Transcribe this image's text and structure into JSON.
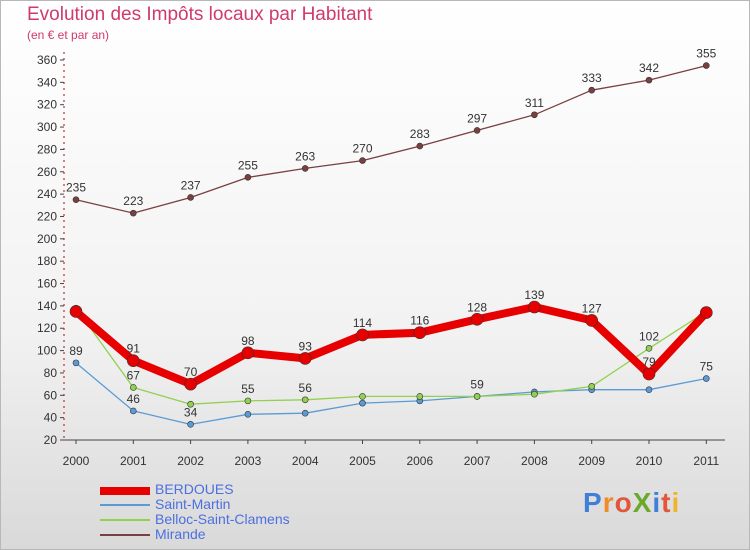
{
  "title": "Evolution des Impôts locaux par Habitant",
  "subtitle": "(en € et par an)",
  "logo": "ProXiti",
  "colors": {
    "background_top": "#ffffff",
    "background_bottom": "#d9d9d9",
    "title": "#d03a6a",
    "legend_text": "#4d6fe0"
  },
  "chart_data": {
    "type": "line",
    "x": [
      "2000",
      "2001",
      "2002",
      "2003",
      "2004",
      "2005",
      "2006",
      "2007",
      "2008",
      "2009",
      "2010",
      "2011"
    ],
    "ylim": [
      20,
      360
    ],
    "yticks": [
      20,
      40,
      60,
      80,
      100,
      120,
      140,
      160,
      180,
      200,
      220,
      240,
      260,
      280,
      300,
      320,
      340,
      360
    ],
    "grid": false,
    "legend_position": "bottom-left",
    "series": [
      {
        "name": "Mirande",
        "color": "#7b3f3f",
        "values": [
          235,
          223,
          237,
          255,
          263,
          270,
          283,
          297,
          311,
          333,
          342,
          355
        ],
        "labels": [
          "235",
          "223",
          "237",
          "255",
          "263",
          "270",
          "283",
          "297",
          "311",
          "333",
          "342",
          "355"
        ]
      },
      {
        "name": "Saint-Martin",
        "color": "#5b9bd5",
        "values": [
          89,
          46,
          34,
          43,
          44,
          53,
          55,
          59,
          63,
          65,
          65,
          75
        ],
        "labels": [
          "89",
          "46",
          "34",
          "",
          "",
          "",
          "",
          "",
          "",
          "",
          "",
          "75"
        ]
      },
      {
        "name": "Belloc-Saint-Clamens",
        "color": "#92d050",
        "values": [
          138,
          67,
          52,
          55,
          56,
          59,
          59,
          59,
          61,
          68,
          102,
          135
        ],
        "labels": [
          "",
          "67",
          "",
          "55",
          "56",
          "",
          "",
          "59",
          "",
          "",
          "102",
          ""
        ]
      },
      {
        "name": "BERDOUES",
        "color": "#e60000",
        "values": [
          135,
          91,
          70,
          98,
          93,
          114,
          116,
          128,
          139,
          127,
          79,
          134
        ],
        "labels": [
          "",
          "91",
          "70",
          "98",
          "93",
          "114",
          "116",
          "128",
          "139",
          "127",
          "79",
          ""
        ]
      }
    ]
  }
}
